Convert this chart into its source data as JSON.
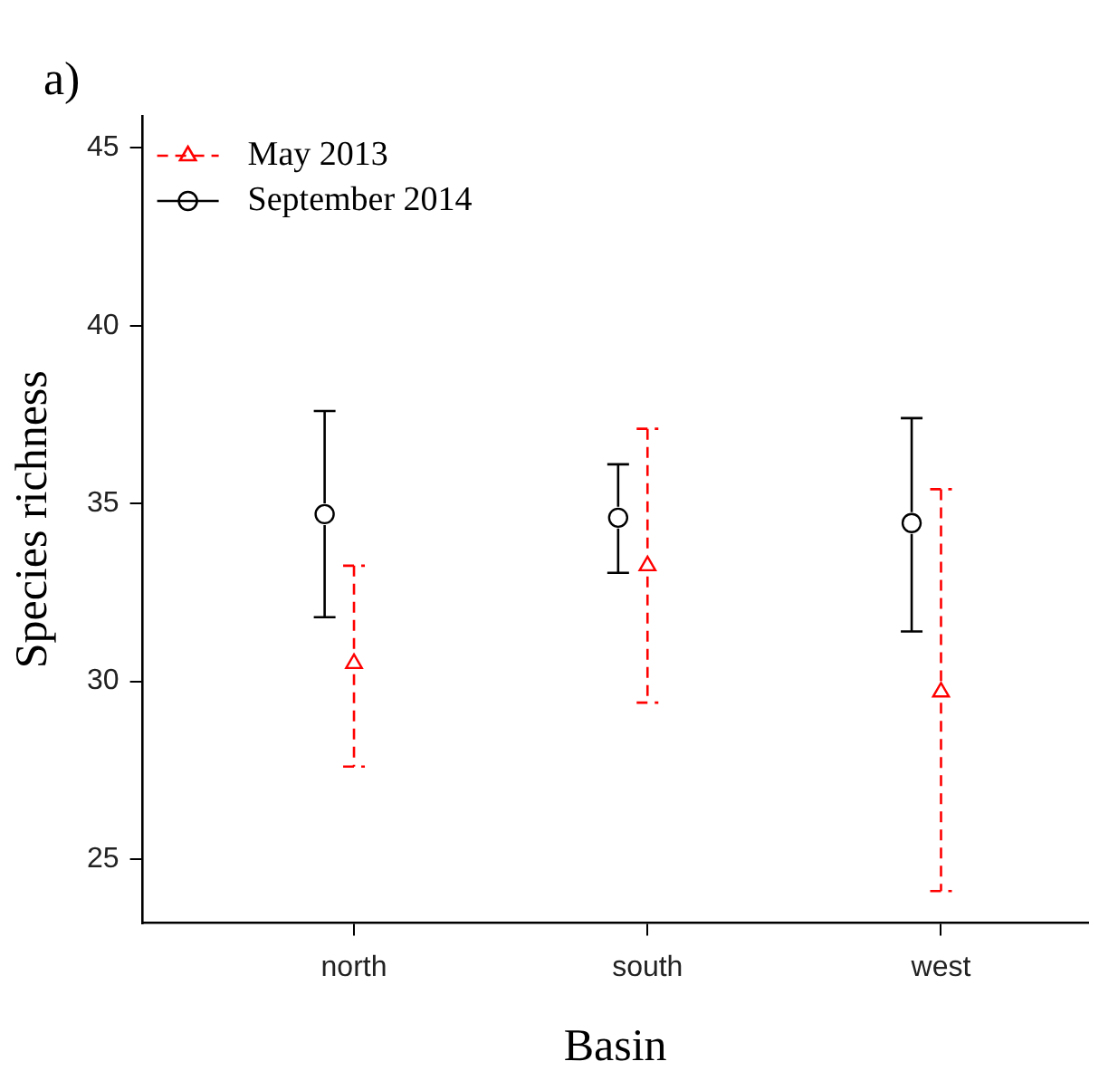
{
  "chart_data": {
    "type": "scatter",
    "title": "a)",
    "xlabel": "Basin",
    "ylabel": "Species richness",
    "categories": [
      "north",
      "south",
      "west"
    ],
    "series": [
      {
        "name": "May 2013",
        "color": "#ff0000",
        "marker": "triangle",
        "line_style": "dashed",
        "values": [
          30.5,
          33.25,
          29.7
        ],
        "errors": [
          [
            27.6,
            33.25
          ],
          [
            29.4,
            37.1
          ],
          [
            24.1,
            35.4
          ]
        ]
      },
      {
        "name": "September 2014",
        "color": "#000000",
        "marker": "circle",
        "line_style": "solid",
        "values": [
          34.7,
          34.6,
          34.45
        ],
        "errors": [
          [
            31.8,
            37.6
          ],
          [
            33.05,
            36.1
          ],
          [
            31.4,
            37.4
          ]
        ]
      }
    ],
    "ylim": [
      23.2,
      45.9
    ],
    "yticks": [
      25,
      30,
      35,
      40,
      45
    ],
    "grid": false,
    "legend": "top left"
  }
}
